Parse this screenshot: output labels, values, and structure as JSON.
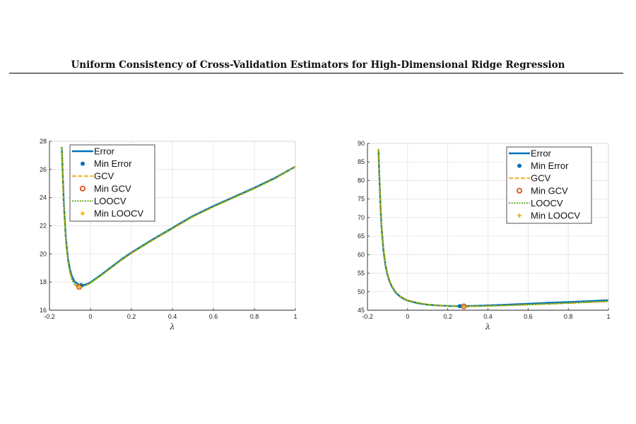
{
  "paper": {
    "title": "Uniform Consistency of Cross-Validation Estimators for High-Dimensional Ridge Regression"
  },
  "colors": {
    "error": "#0072BD",
    "gcv": "#EDB120",
    "min_gcv": "#D95319",
    "loocv": "#4DA000",
    "min_loocv": "#EDB120"
  },
  "chart_data": [
    {
      "type": "line",
      "xlabel": "λ",
      "xlim": [
        -0.2,
        1
      ],
      "ylim": [
        16,
        28
      ],
      "xticks": [
        "-0.2",
        "0",
        "0.2",
        "0.4",
        "0.6",
        "0.8",
        "1"
      ],
      "yticks": [
        "16",
        "18",
        "20",
        "22",
        "24",
        "26",
        "28"
      ],
      "grid": true,
      "legend": "top-left",
      "x": [
        -0.14,
        -0.13,
        -0.12,
        -0.11,
        -0.1,
        -0.09,
        -0.08,
        -0.07,
        -0.06,
        -0.05,
        -0.04,
        -0.03,
        -0.02,
        -0.01,
        0.0,
        0.05,
        0.1,
        0.15,
        0.2,
        0.3,
        0.4,
        0.5,
        0.6,
        0.7,
        0.8,
        0.9,
        1.0
      ],
      "series": [
        {
          "name": "Error",
          "values": [
            27.6,
            23.6,
            21.1,
            19.7,
            18.9,
            18.4,
            18.1,
            17.95,
            17.85,
            17.8,
            17.78,
            17.8,
            17.85,
            17.9,
            17.98,
            18.5,
            19.05,
            19.6,
            20.1,
            21.0,
            21.85,
            22.7,
            23.4,
            24.05,
            24.7,
            25.4,
            26.2
          ]
        },
        {
          "name": "GCV",
          "values": [
            27.6,
            23.4,
            20.9,
            19.5,
            18.7,
            18.2,
            17.9,
            17.75,
            17.68,
            17.66,
            17.68,
            17.72,
            17.78,
            17.85,
            17.93,
            18.45,
            19.0,
            19.55,
            20.05,
            20.95,
            21.8,
            22.65,
            23.35,
            24.0,
            24.65,
            25.35,
            26.2
          ]
        },
        {
          "name": "LOOCV",
          "values": [
            27.6,
            23.4,
            20.9,
            19.5,
            18.7,
            18.2,
            17.9,
            17.75,
            17.68,
            17.66,
            17.68,
            17.72,
            17.78,
            17.85,
            17.93,
            18.45,
            19.0,
            19.55,
            20.05,
            20.95,
            21.8,
            22.65,
            23.35,
            24.0,
            24.65,
            25.35,
            26.2
          ]
        }
      ],
      "markers": [
        {
          "name": "Min Error",
          "x": -0.045,
          "y": 17.78
        },
        {
          "name": "Min GCV",
          "x": -0.055,
          "y": 17.66
        },
        {
          "name": "Min LOOCV",
          "x": -0.055,
          "y": 17.66
        }
      ]
    },
    {
      "type": "line",
      "xlabel": "λ",
      "xlim": [
        -0.2,
        1
      ],
      "ylim": [
        45,
        90
      ],
      "xticks": [
        "-0.2",
        "0",
        "0.2",
        "0.4",
        "0.6",
        "0.8",
        "1"
      ],
      "yticks": [
        "45",
        "50",
        "55",
        "60",
        "65",
        "70",
        "75",
        "80",
        "85",
        "90"
      ],
      "grid": true,
      "legend": "top-right",
      "x": [
        -0.145,
        -0.14,
        -0.135,
        -0.13,
        -0.12,
        -0.11,
        -0.1,
        -0.09,
        -0.08,
        -0.06,
        -0.04,
        -0.02,
        0.0,
        0.05,
        0.1,
        0.15,
        0.2,
        0.25,
        0.28,
        0.3,
        0.4,
        0.5,
        0.6,
        0.7,
        0.8,
        0.9,
        1.0
      ],
      "series": [
        {
          "name": "Error",
          "values": [
            88.0,
            80.0,
            73.0,
            67.5,
            61.0,
            57.0,
            54.5,
            52.8,
            51.5,
            49.8,
            48.8,
            48.1,
            47.6,
            46.9,
            46.5,
            46.3,
            46.15,
            46.1,
            46.1,
            46.12,
            46.3,
            46.5,
            46.75,
            47.0,
            47.2,
            47.45,
            47.7
          ]
        },
        {
          "name": "GCV",
          "values": [
            88.5,
            80.5,
            73.5,
            68.0,
            61.5,
            57.4,
            54.8,
            53.0,
            51.7,
            50.0,
            48.9,
            48.2,
            47.7,
            47.0,
            46.55,
            46.3,
            46.15,
            46.05,
            46.02,
            46.03,
            46.15,
            46.3,
            46.5,
            46.7,
            46.9,
            47.15,
            47.4
          ]
        },
        {
          "name": "LOOCV",
          "values": [
            88.5,
            80.5,
            73.5,
            68.0,
            61.5,
            57.4,
            54.8,
            53.0,
            51.7,
            50.0,
            48.9,
            48.2,
            47.7,
            47.0,
            46.55,
            46.3,
            46.15,
            46.05,
            46.02,
            46.03,
            46.15,
            46.3,
            46.5,
            46.7,
            46.9,
            47.15,
            47.4
          ]
        }
      ],
      "markers": [
        {
          "name": "Min Error",
          "x": 0.26,
          "y": 46.1
        },
        {
          "name": "Min GCV",
          "x": 0.28,
          "y": 46.02
        },
        {
          "name": "Min LOOCV",
          "x": 0.28,
          "y": 46.02
        }
      ]
    }
  ]
}
